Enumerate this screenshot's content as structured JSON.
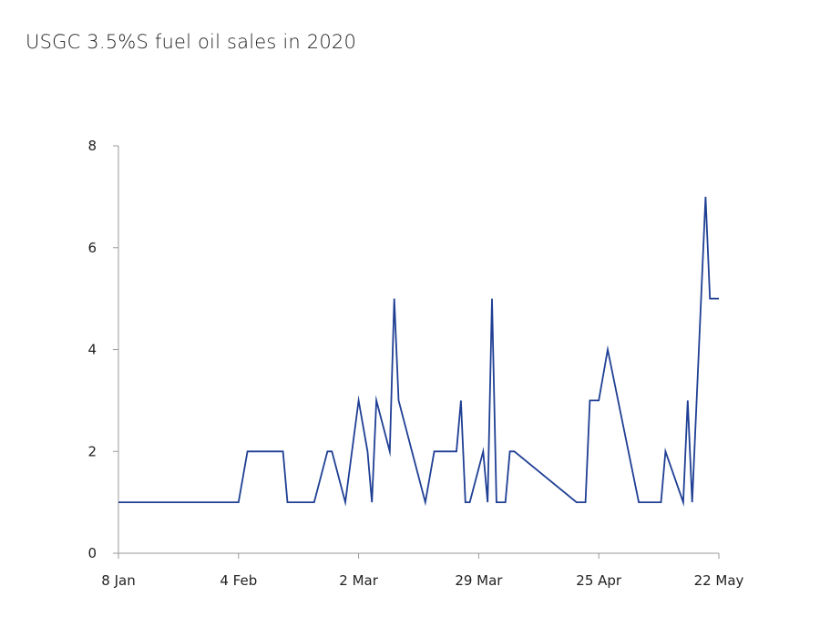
{
  "chart_data": {
    "type": "line",
    "title": "USGC 3.5%S fuel oil sales in 2020",
    "xlabel": "",
    "ylabel": "",
    "x_tick_labels": [
      "8 Jan",
      "4 Feb",
      "2 Mar",
      "29 Mar",
      "25 Apr",
      "22 May"
    ],
    "x_tick_dates": [
      "2020-01-08",
      "2020-02-04",
      "2020-03-02",
      "2020-03-29",
      "2020-04-25",
      "2020-05-22"
    ],
    "y_ticks": [
      0,
      2,
      4,
      6,
      8
    ],
    "xlim": [
      "2020-01-08",
      "2020-05-22"
    ],
    "ylim": [
      0,
      8
    ],
    "grid": false,
    "legend": "none",
    "line_color": "#1f3f94",
    "series": [
      {
        "x": [
          "2020-01-08",
          "2020-01-13",
          "2020-01-18",
          "2020-01-23",
          "2020-01-28",
          "2020-02-04",
          "2020-02-06",
          "2020-02-10",
          "2020-02-14",
          "2020-02-15",
          "2020-02-17",
          "2020-02-21",
          "2020-02-24",
          "2020-02-25",
          "2020-02-28",
          "2020-03-02",
          "2020-03-04",
          "2020-03-05",
          "2020-03-06",
          "2020-03-09",
          "2020-03-10",
          "2020-03-11",
          "2020-03-17",
          "2020-03-19",
          "2020-03-24",
          "2020-03-25",
          "2020-03-26",
          "2020-03-27",
          "2020-03-30",
          "2020-03-31",
          "2020-04-01",
          "2020-04-02",
          "2020-04-04",
          "2020-04-05",
          "2020-04-06",
          "2020-04-20",
          "2020-04-22",
          "2020-04-23",
          "2020-04-25",
          "2020-04-27",
          "2020-05-04",
          "2020-05-09",
          "2020-05-10",
          "2020-05-14",
          "2020-05-15",
          "2020-05-16",
          "2020-05-18",
          "2020-05-19",
          "2020-05-20",
          "2020-05-21",
          "2020-05-22"
        ],
        "y": [
          1,
          1,
          1,
          1,
          1,
          1,
          2,
          2,
          2,
          1,
          1,
          1,
          2,
          2,
          1,
          3,
          2,
          1,
          3,
          2,
          5,
          3,
          1,
          2,
          2,
          3,
          1,
          1,
          2,
          1,
          5,
          1,
          1,
          2,
          2,
          1,
          1,
          3,
          3,
          4,
          1,
          1,
          2,
          1,
          3,
          1,
          5,
          7,
          5,
          5,
          5
        ]
      }
    ]
  }
}
